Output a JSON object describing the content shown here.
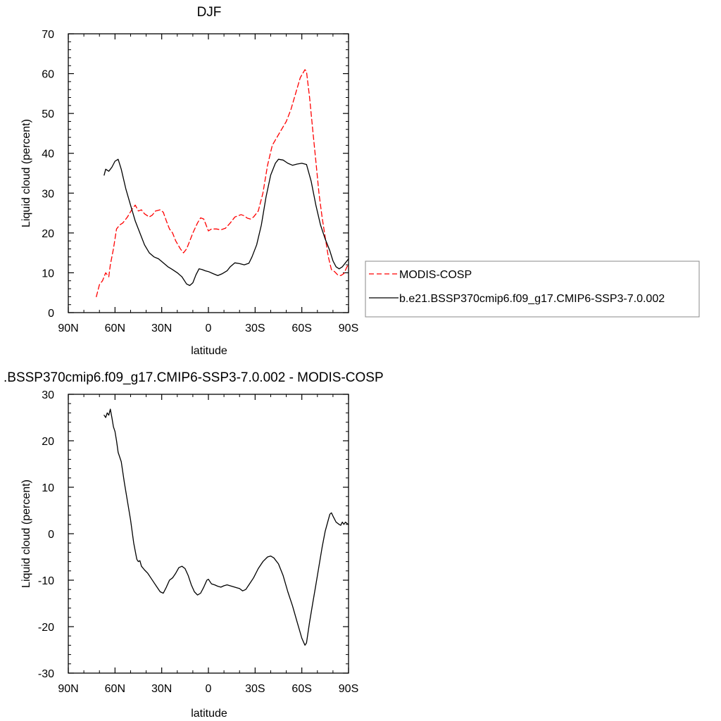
{
  "chart_data": [
    {
      "type": "line",
      "title": "DJF",
      "xlabel": "latitude",
      "ylabel": "Liquid cloud (percent)",
      "xlim": [
        -90,
        90
      ],
      "ylim": [
        0,
        70
      ],
      "x_ticks": [
        -90,
        -60,
        -30,
        0,
        30,
        60,
        90
      ],
      "x_tick_labels": [
        "90N",
        "60N",
        "30N",
        "0",
        "30S",
        "60S",
        "90S"
      ],
      "y_ticks": [
        0,
        10,
        20,
        30,
        40,
        50,
        60,
        70
      ],
      "y_tick_labels": [
        "0",
        "10",
        "20",
        "30",
        "40",
        "50",
        "60",
        "70"
      ],
      "grid": false,
      "legend": {
        "placement": "right",
        "entries": [
          "MODIS-COSP",
          "b.e21.BSSP370cmip6.f09_g17.CMIP6-SSP3-7.0.002"
        ]
      },
      "series": [
        {
          "name": "MODIS-COSP",
          "color": "#ff0000",
          "style": "dashed",
          "points": [
            [
              -72,
              4
            ],
            [
              -70,
              7
            ],
            [
              -68,
              8
            ],
            [
              -66,
              10
            ],
            [
              -64,
              9
            ],
            [
              -63,
              12
            ],
            [
              -61,
              16
            ],
            [
              -59,
              21
            ],
            [
              -57,
              22
            ],
            [
              -55,
              22.5
            ],
            [
              -52,
              24
            ],
            [
              -49,
              26
            ],
            [
              -47,
              27
            ],
            [
              -45,
              25.5
            ],
            [
              -43,
              25.8
            ],
            [
              -41,
              24.8
            ],
            [
              -38,
              24
            ],
            [
              -36,
              24.5
            ],
            [
              -34,
              25.5
            ],
            [
              -31,
              25.8
            ],
            [
              -29,
              25.2
            ],
            [
              -27,
              23
            ],
            [
              -25,
              21
            ],
            [
              -23,
              20
            ],
            [
              -21,
              18
            ],
            [
              -18,
              16
            ],
            [
              -16,
              15
            ],
            [
              -14,
              16
            ],
            [
              -12,
              18
            ],
            [
              -10,
              20
            ],
            [
              -7,
              22.5
            ],
            [
              -5,
              23.8
            ],
            [
              -3,
              23.5
            ],
            [
              -1,
              21.5
            ],
            [
              0,
              20.5
            ],
            [
              2,
              21
            ],
            [
              5,
              21
            ],
            [
              8,
              20.8
            ],
            [
              11,
              21.2
            ],
            [
              14,
              22.5
            ],
            [
              17,
              24
            ],
            [
              21,
              24.6
            ],
            [
              23,
              24.3
            ],
            [
              25,
              23.7
            ],
            [
              27,
              23.5
            ],
            [
              29,
              24
            ],
            [
              32,
              25.5
            ],
            [
              35,
              30
            ],
            [
              38,
              37
            ],
            [
              41,
              42
            ],
            [
              44,
              44
            ],
            [
              47,
              46
            ],
            [
              50,
              48
            ],
            [
              53,
              51
            ],
            [
              56,
              55
            ],
            [
              59,
              59
            ],
            [
              62,
              61
            ],
            [
              63,
              60.5
            ],
            [
              65,
              54
            ],
            [
              67,
              46
            ],
            [
              69,
              38
            ],
            [
              71,
              30
            ],
            [
              73,
              24
            ],
            [
              75,
              19
            ],
            [
              77,
              14
            ],
            [
              79,
              10.8
            ],
            [
              81,
              10.3
            ],
            [
              83,
              9.5
            ],
            [
              85,
              9.3
            ],
            [
              87,
              9.8
            ],
            [
              89,
              11.5
            ],
            [
              90,
              12
            ]
          ]
        },
        {
          "name": "b.e21.BSSP370cmip6.f09_g17.CMIP6-SSP3-7.0.002",
          "color": "#000000",
          "style": "solid",
          "points": [
            [
              -67,
              34.5
            ],
            [
              -66,
              36
            ],
            [
              -64,
              35.5
            ],
            [
              -62,
              36.5
            ],
            [
              -60,
              38
            ],
            [
              -58,
              38.5
            ],
            [
              -56,
              36
            ],
            [
              -53,
              31
            ],
            [
              -50,
              27
            ],
            [
              -47,
              23
            ],
            [
              -44,
              20
            ],
            [
              -41,
              17
            ],
            [
              -38,
              15
            ],
            [
              -35,
              14
            ],
            [
              -32,
              13.5
            ],
            [
              -29,
              12.5
            ],
            [
              -26,
              11.5
            ],
            [
              -23,
              10.8
            ],
            [
              -20,
              10
            ],
            [
              -17,
              9
            ],
            [
              -14,
              7.2
            ],
            [
              -12,
              6.8
            ],
            [
              -10,
              7.5
            ],
            [
              -8,
              9.5
            ],
            [
              -6,
              11
            ],
            [
              -4,
              10.8
            ],
            [
              -2,
              10.5
            ],
            [
              0,
              10.3
            ],
            [
              3,
              9.8
            ],
            [
              6,
              9.3
            ],
            [
              9,
              9.8
            ],
            [
              12,
              10.5
            ],
            [
              14,
              11.5
            ],
            [
              17,
              12.5
            ],
            [
              20,
              12.3
            ],
            [
              23,
              12
            ],
            [
              26,
              12.4
            ],
            [
              28,
              14
            ],
            [
              31,
              17
            ],
            [
              34,
              22
            ],
            [
              37,
              29
            ],
            [
              40,
              34.5
            ],
            [
              43,
              37.5
            ],
            [
              45,
              38.5
            ],
            [
              48,
              38.3
            ],
            [
              51,
              37.5
            ],
            [
              54,
              37
            ],
            [
              57,
              37.3
            ],
            [
              60,
              37.5
            ],
            [
              63,
              37.2
            ],
            [
              66,
              33
            ],
            [
              69,
              27
            ],
            [
              72,
              22
            ],
            [
              75,
              18.5
            ],
            [
              78,
              15.5
            ],
            [
              80,
              13
            ],
            [
              82,
              11.5
            ],
            [
              84,
              11
            ],
            [
              86,
              11.5
            ],
            [
              88,
              12.5
            ],
            [
              90,
              13.5
            ]
          ]
        }
      ]
    },
    {
      "type": "line",
      "title": ".BSSP370cmip6.f09_g17.CMIP6-SSP3-7.0.002 - MODIS-COSP",
      "xlabel": "latitude",
      "ylabel": "Liquid cloud (percent)",
      "xlim": [
        -90,
        90
      ],
      "ylim": [
        -30,
        30
      ],
      "x_ticks": [
        -90,
        -60,
        -30,
        0,
        30,
        60,
        90
      ],
      "x_tick_labels": [
        "90N",
        "60N",
        "30N",
        "0",
        "30S",
        "60S",
        "90S"
      ],
      "y_ticks": [
        -30,
        -20,
        -10,
        0,
        10,
        20,
        30
      ],
      "y_tick_labels": [
        "-30",
        "-20",
        "-10",
        "0",
        "10",
        "20",
        "30"
      ],
      "grid": false,
      "series": [
        {
          "color": "#000000",
          "style": "solid",
          "points": [
            [
              -67,
              25.5
            ],
            [
              -66,
              25
            ],
            [
              -65,
              26
            ],
            [
              -64,
              25.5
            ],
            [
              -63,
              26.8
            ],
            [
              -62,
              25
            ],
            [
              -61,
              23
            ],
            [
              -60,
              22
            ],
            [
              -59,
              20
            ],
            [
              -58,
              17.5
            ],
            [
              -56,
              15.5
            ],
            [
              -54,
              11
            ],
            [
              -52,
              7
            ],
            [
              -50,
              3
            ],
            [
              -48,
              -2
            ],
            [
              -46,
              -5.5
            ],
            [
              -45,
              -6
            ],
            [
              -44,
              -5.8
            ],
            [
              -43,
              -7
            ],
            [
              -41,
              -7.8
            ],
            [
              -39,
              -8.5
            ],
            [
              -37,
              -9.5
            ],
            [
              -35,
              -10.5
            ],
            [
              -33,
              -11.5
            ],
            [
              -31,
              -12.5
            ],
            [
              -29,
              -12.8
            ],
            [
              -27,
              -11.5
            ],
            [
              -25,
              -10
            ],
            [
              -23,
              -9.5
            ],
            [
              -21,
              -8.5
            ],
            [
              -19,
              -7.3
            ],
            [
              -17,
              -7
            ],
            [
              -15,
              -7.5
            ],
            [
              -13,
              -9
            ],
            [
              -11,
              -11
            ],
            [
              -9,
              -12.5
            ],
            [
              -7,
              -13.2
            ],
            [
              -5,
              -12.8
            ],
            [
              -3,
              -11.5
            ],
            [
              -1,
              -10
            ],
            [
              0,
              -9.8
            ],
            [
              2,
              -10.8
            ],
            [
              4,
              -11
            ],
            [
              6,
              -11.3
            ],
            [
              8,
              -11.5
            ],
            [
              10,
              -11.2
            ],
            [
              12,
              -11
            ],
            [
              15,
              -11.3
            ],
            [
              18,
              -11.6
            ],
            [
              20,
              -11.8
            ],
            [
              22,
              -12.3
            ],
            [
              24,
              -12
            ],
            [
              26,
              -11
            ],
            [
              29,
              -9.5
            ],
            [
              32,
              -7.5
            ],
            [
              35,
              -6
            ],
            [
              38,
              -5
            ],
            [
              40,
              -4.8
            ],
            [
              42,
              -5.2
            ],
            [
              45,
              -6.5
            ],
            [
              48,
              -9
            ],
            [
              51,
              -12.5
            ],
            [
              54,
              -15.5
            ],
            [
              57,
              -19
            ],
            [
              60,
              -22.5
            ],
            [
              62,
              -24
            ],
            [
              63,
              -23.5
            ],
            [
              65,
              -19
            ],
            [
              67,
              -15
            ],
            [
              69,
              -11
            ],
            [
              71,
              -7
            ],
            [
              73,
              -3
            ],
            [
              75,
              0.5
            ],
            [
              77,
              3
            ],
            [
              78,
              4.2
            ],
            [
              79,
              4.5
            ],
            [
              80,
              3.8
            ],
            [
              82,
              2.5
            ],
            [
              84,
              2
            ],
            [
              85,
              1.8
            ],
            [
              86,
              2.5
            ],
            [
              87,
              2
            ],
            [
              88,
              2.5
            ],
            [
              89,
              2.2
            ],
            [
              90,
              2
            ]
          ]
        }
      ]
    }
  ]
}
